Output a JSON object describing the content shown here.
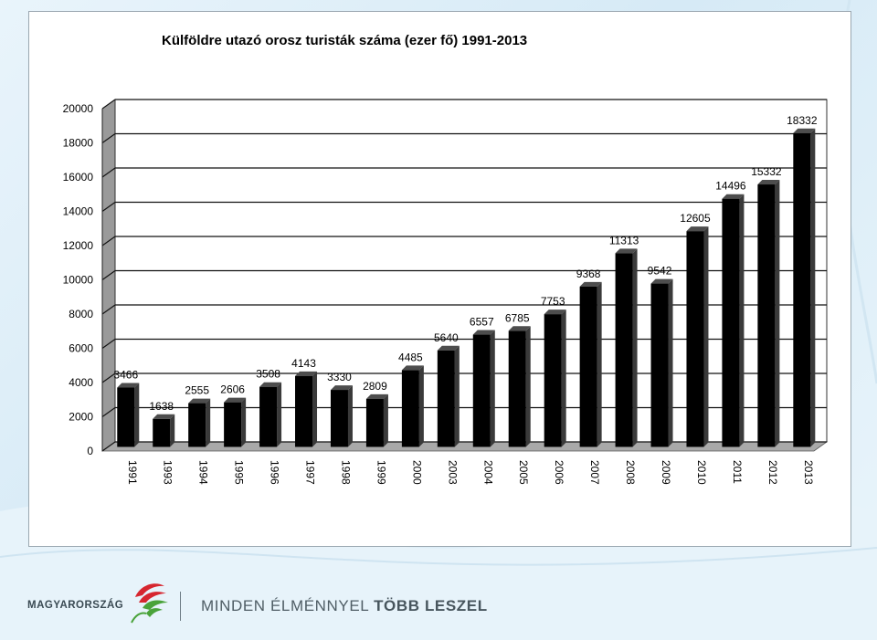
{
  "slide": {
    "title": "Külföldre utazó orosz turisták száma (ezer fő) 1991-2013"
  },
  "chart_data": {
    "type": "bar",
    "title": "Külföldre utazó orosz turisták száma (ezer fő) 1991-2013",
    "categories": [
      "1991",
      "1993",
      "1994",
      "1995",
      "1996",
      "1997",
      "1998",
      "1999",
      "2000",
      "2003",
      "2004",
      "2005",
      "2006",
      "2007",
      "2008",
      "2009",
      "2010",
      "2011",
      "2012",
      "2013"
    ],
    "values": [
      3466,
      1638,
      2555,
      2606,
      3508,
      4143,
      3330,
      2809,
      4485,
      5640,
      6557,
      6785,
      7753,
      9368,
      11313,
      9542,
      12605,
      14496,
      15332,
      18332
    ],
    "yticks": [
      0,
      2000,
      4000,
      6000,
      8000,
      10000,
      12000,
      14000,
      16000,
      18000,
      20000
    ],
    "ylim": [
      0,
      20000
    ],
    "grid": true,
    "bar_color": "#000000",
    "style": "3d-column"
  },
  "footer": {
    "brand": "MAGYARORSZÁG",
    "slogan_light": "MINDEN ÉLMÉNNYEL ",
    "slogan_bold": "TÖBB LESZEL",
    "colors": {
      "red": "#d6262f",
      "green": "#4aa33a",
      "text": "#4f5d65"
    }
  }
}
